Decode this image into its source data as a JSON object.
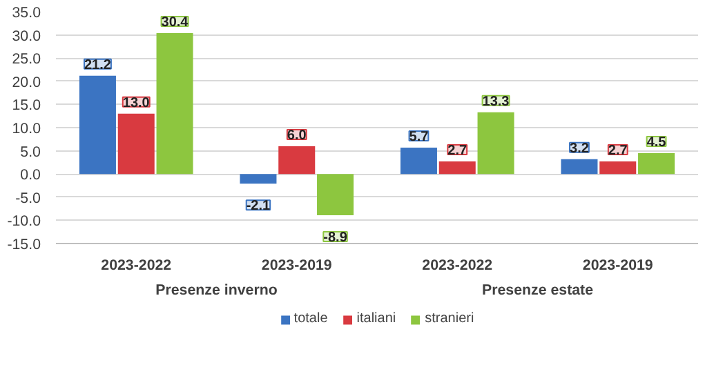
{
  "chart_data": {
    "type": "bar",
    "categories": [
      "2023-2022",
      "2023-2019",
      "2023-2022",
      "2023-2019"
    ],
    "series": [
      {
        "name": "totale",
        "color": "#3b74c2",
        "values": [
          21.2,
          -2.1,
          5.7,
          3.2
        ],
        "value_labels": [
          "21.2",
          "-2.1",
          "5.7",
          "3.2"
        ]
      },
      {
        "name": "italiani",
        "color": "#d93a40",
        "values": [
          13.0,
          6.0,
          2.7,
          2.7
        ],
        "value_labels": [
          "13.0",
          "6.0",
          "2.7",
          "2.7"
        ]
      },
      {
        "name": "stranieri",
        "color": "#8dc63f",
        "values": [
          30.4,
          -8.9,
          13.3,
          4.5
        ],
        "value_labels": [
          "30.4",
          "-8.9",
          "13.3",
          "4.5"
        ]
      }
    ],
    "annotations": [
      "Presenze inverno",
      "Presenze estate"
    ],
    "ylim": [
      -15,
      35
    ],
    "yticks": [
      {
        "value": -15,
        "label": "-15.0"
      },
      {
        "value": -10,
        "label": "-10.0"
      },
      {
        "value": -5,
        "label": "-5.0"
      },
      {
        "value": 0,
        "label": "0.0"
      },
      {
        "value": 5,
        "label": "5.0"
      },
      {
        "value": 10,
        "label": "10.0"
      },
      {
        "value": 15,
        "label": "15.0"
      },
      {
        "value": 20,
        "label": "20.0"
      },
      {
        "value": 25,
        "label": "25.0"
      },
      {
        "value": 30,
        "label": "30.0"
      },
      {
        "value": 35,
        "label": "35.0"
      }
    ],
    "grid": "y",
    "legend": "bottom"
  }
}
